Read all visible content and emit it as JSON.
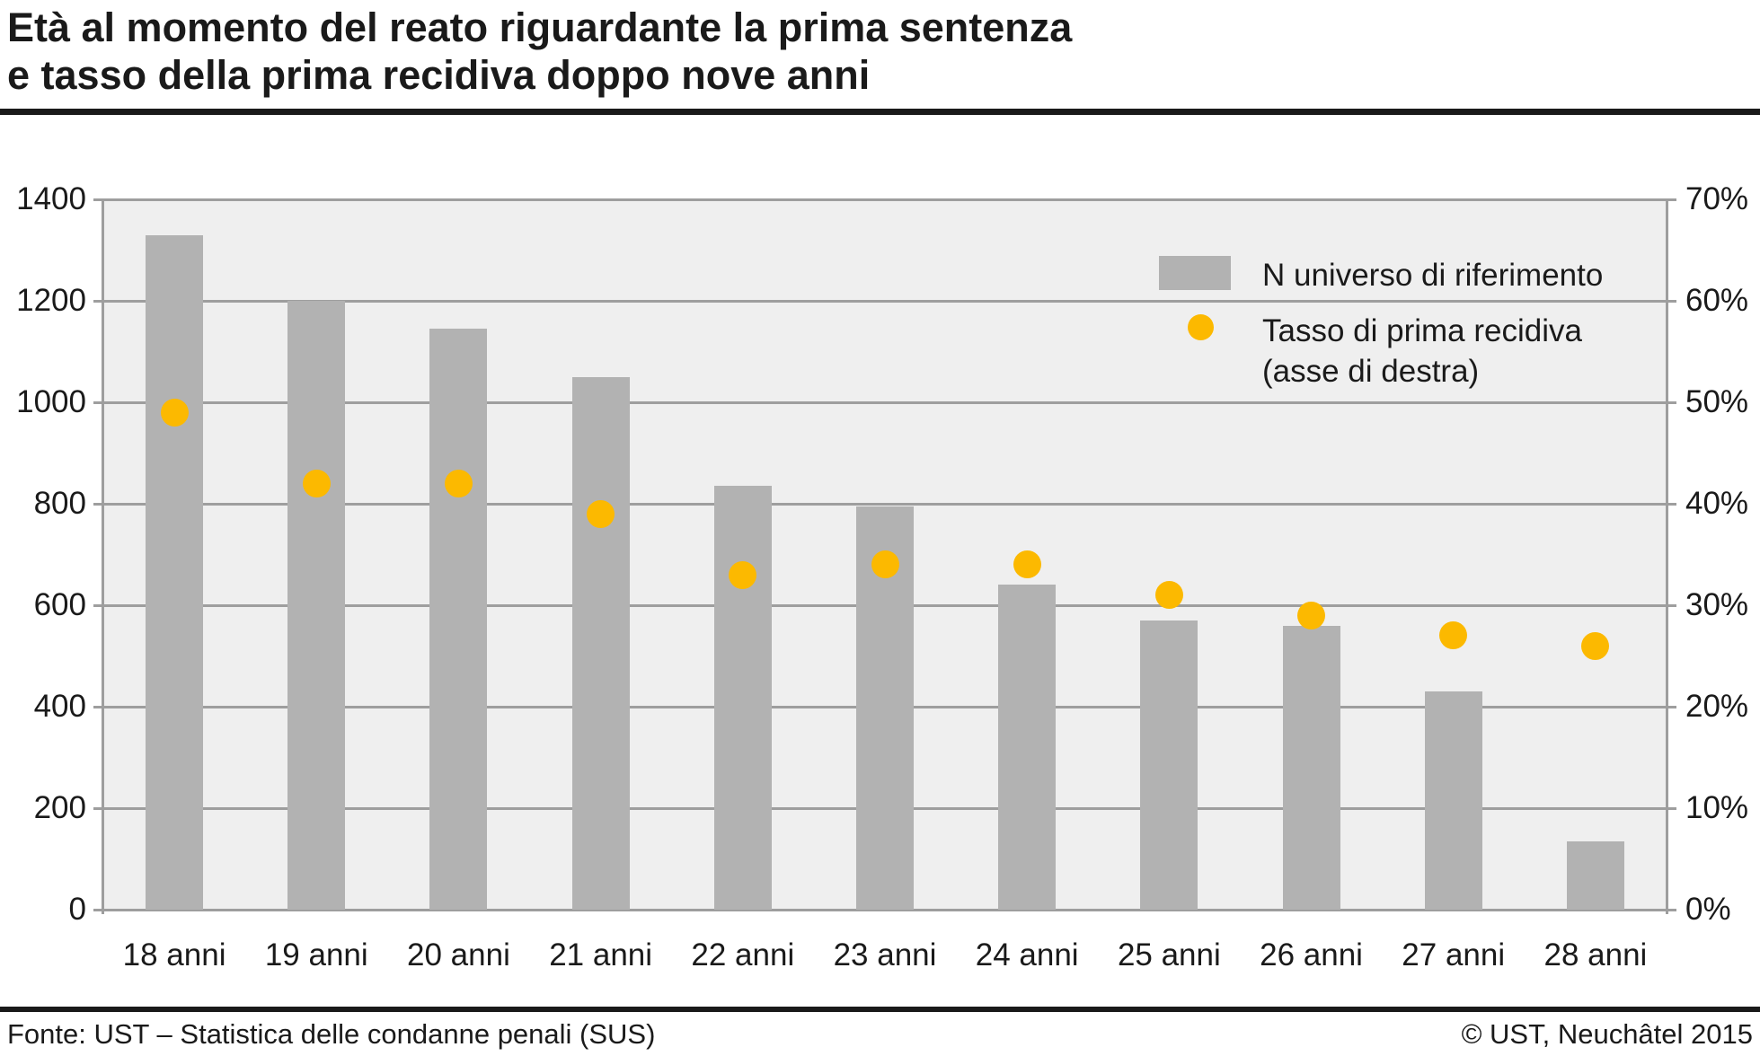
{
  "title": {
    "line1": "Età al momento del reato riguardante la prima sentenza",
    "line2": "e tasso della prima recidiva doppo nove anni"
  },
  "legend": {
    "bar_label": "N universo di riferimento",
    "dot_label_line1": "Tasso di prima recidiva",
    "dot_label_line2": "(asse di destra)"
  },
  "footer": {
    "source": "Fonte: UST – Statistica delle condanne penali (SUS)",
    "copyright": "© UST, Neuchâtel 2015"
  },
  "colors": {
    "bar": "#b2b2b2",
    "dot": "#fcb900",
    "grid": "#9e9e9e",
    "plot_bg": "#efefef",
    "text": "#1a1a1a"
  },
  "chart_data": {
    "type": "bar",
    "subtype": "dual-axis bar + scatter",
    "title": "Età al momento del reato riguardante la prima sentenza e tasso della prima recidiva doppo nove anni",
    "categories": [
      "18 anni",
      "19 anni",
      "20 anni",
      "21 anni",
      "22 anni",
      "23 anni",
      "24 anni",
      "25 anni",
      "26 anni",
      "27 anni",
      "28 anni"
    ],
    "series": [
      {
        "name": "N universo di riferimento",
        "type": "bar",
        "axis": "left",
        "values": [
          1330,
          1200,
          1145,
          1050,
          835,
          795,
          640,
          570,
          560,
          430,
          135
        ]
      },
      {
        "name": "Tasso di prima recidiva (asse di destra)",
        "type": "scatter",
        "axis": "right",
        "values_percent": [
          49,
          42,
          42,
          39,
          33,
          34,
          34,
          31,
          29,
          27,
          26
        ]
      }
    ],
    "left_axis": {
      "range": [
        0,
        1400
      ],
      "ticks": [
        0,
        200,
        400,
        600,
        800,
        1000,
        1200,
        1400
      ]
    },
    "right_axis": {
      "range_percent": [
        0,
        70
      ],
      "tick_labels": [
        "0%",
        "10%",
        "20%",
        "30%",
        "40%",
        "50%",
        "60%",
        "70%"
      ]
    },
    "grid": true,
    "legend_position": "top-right-inside"
  }
}
